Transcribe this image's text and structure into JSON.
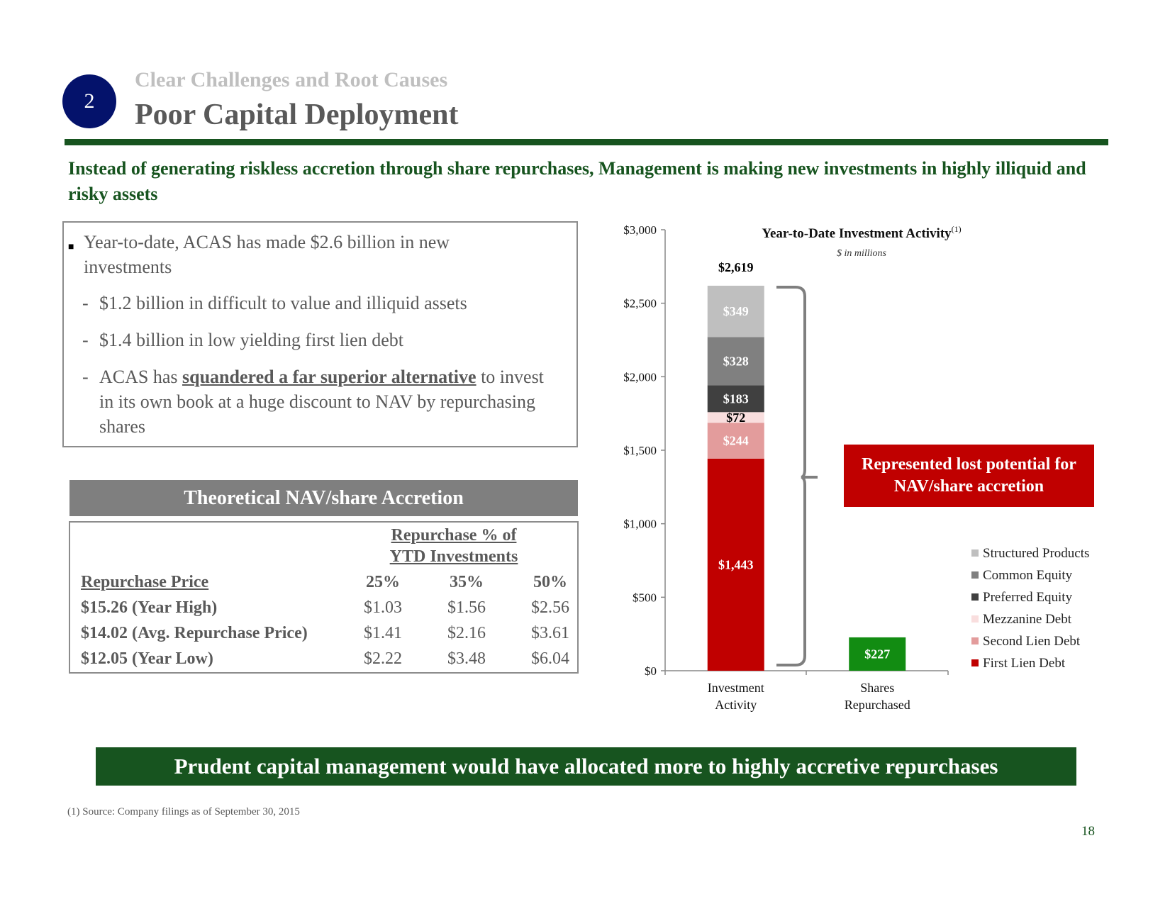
{
  "header": {
    "badge_number": "2",
    "section_label": "Clear Challenges and Root Causes",
    "title": "Poor Capital Deployment"
  },
  "headline": "Instead of generating riskless accretion through share repurchases, Management is making new investments in highly illiquid and risky assets",
  "bullets": {
    "main": "Year-to-date, ACAS has made $2.6 billion in new investments",
    "sub1": "$1.2 billion in difficult to value and illiquid assets",
    "sub2": "$1.4 billion in low yielding first lien debt",
    "sub3_pre": "ACAS has ",
    "sub3_emph": "squandered a far superior alternative",
    "sub3_post": " to invest in its own book at a huge discount to NAV by repurchasing shares",
    "dash": "-"
  },
  "accretion_table": {
    "header": "Theoretical NAV/share Accretion",
    "group_header_line1": "Repurchase % of",
    "group_header_line2": "YTD Investments",
    "row_header": "Repurchase Price",
    "columns": [
      "25%",
      "35%",
      "50%"
    ],
    "rows": [
      {
        "label": "$15.26 (Year High)",
        "values": [
          "$1.03",
          "$1.56",
          "$2.56"
        ]
      },
      {
        "label": "$14.02 (Avg. Repurchase Price)",
        "values": [
          "$1.41",
          "$2.16",
          "$3.61"
        ]
      },
      {
        "label": "$12.05 (Year Low)",
        "values": [
          "$2.22",
          "$3.48",
          "$6.04"
        ]
      }
    ]
  },
  "chart_data": {
    "type": "bar",
    "stacked": true,
    "title": "Year-to-Date Investment Activity",
    "title_footnote": "(1)",
    "subtitle": "$ in millions",
    "categories": [
      "Investment Activity",
      "Shares Repurchased"
    ],
    "category_lines": [
      [
        "Investment",
        "Activity"
      ],
      [
        "Shares",
        "Repurchased"
      ]
    ],
    "ylim": [
      0,
      3000
    ],
    "y_ticks": [
      0,
      500,
      1000,
      1500,
      2000,
      2500,
      3000
    ],
    "y_tick_labels": [
      "$0",
      "$500",
      "$1,000",
      "$1,500",
      "$2,000",
      "$2,500",
      "$3,000"
    ],
    "series": [
      {
        "name": "First Lien Debt",
        "values": [
          1443,
          0
        ],
        "color": "#c00000",
        "label_color": "#ffffff",
        "labels": [
          "$1,443",
          ""
        ]
      },
      {
        "name": "Second Lien Debt",
        "values": [
          244,
          0
        ],
        "color": "#e39c9c",
        "label_color": "#ffffff",
        "labels": [
          "$244",
          ""
        ]
      },
      {
        "name": "Mezzanine Debt",
        "values": [
          72,
          0
        ],
        "color": "#f9dede",
        "label_color": "#000000",
        "labels": [
          "$72",
          ""
        ]
      },
      {
        "name": "Preferred Equity",
        "values": [
          183,
          0
        ],
        "color": "#404040",
        "label_color": "#ffffff",
        "labels": [
          "$183",
          ""
        ]
      },
      {
        "name": "Common Equity",
        "values": [
          328,
          0
        ],
        "color": "#808080",
        "label_color": "#ffffff",
        "labels": [
          "$328",
          ""
        ]
      },
      {
        "name": "Structured Products",
        "values": [
          349,
          0
        ],
        "color": "#bfbfbf",
        "label_color": "#ffffff",
        "labels": [
          "$349",
          ""
        ]
      },
      {
        "name": "Shares Repurchased",
        "values": [
          0,
          227
        ],
        "color": "#128c12",
        "label_color": "#ffffff",
        "labels": [
          "",
          "$227"
        ]
      }
    ],
    "totals": [
      "$2,619",
      ""
    ],
    "legend": [
      "Structured Products",
      "Common Equity",
      "Preferred Equity",
      "Mezzanine Debt",
      "Second Lien Debt",
      "First Lien Debt"
    ],
    "callout": "Represented lost potential for NAV/share accretion"
  },
  "banner": "Prudent capital management would have allocated more to highly accretive repurchases",
  "footnote": "(1)  Source: Company filings as of September 30, 2015",
  "page_number": "18"
}
